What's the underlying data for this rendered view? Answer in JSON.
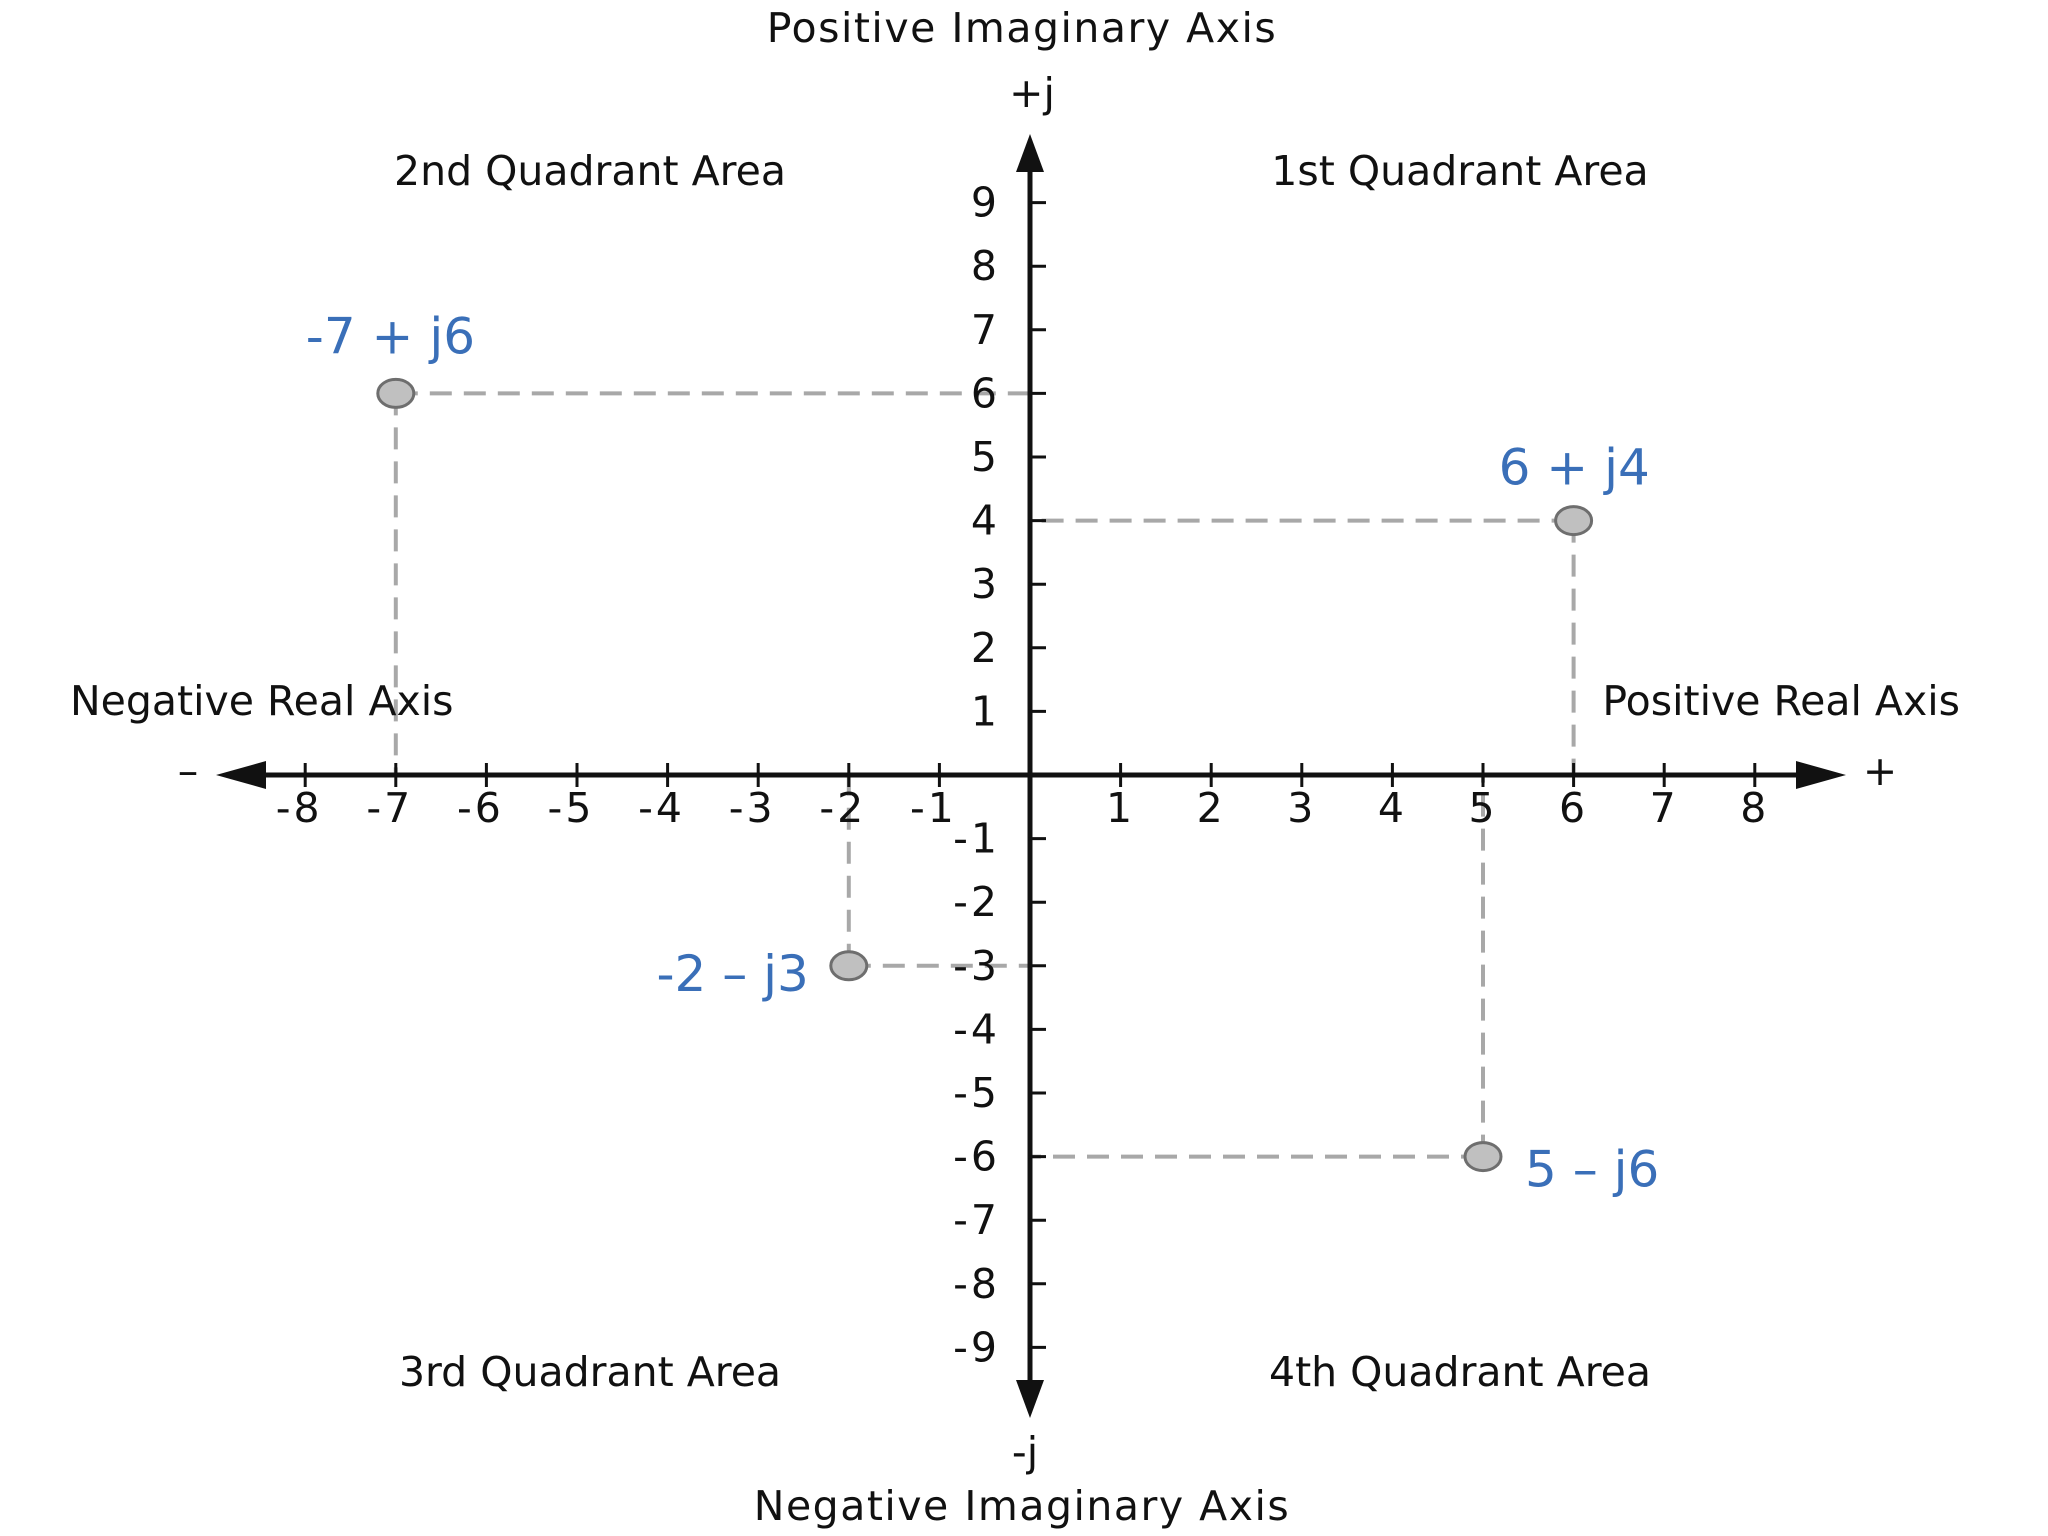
{
  "title_top": "Positive Imaginary Axis",
  "title_bottom": "Negative Imaginary Axis",
  "plus_j": "+j",
  "minus_j": "-j",
  "real_pos_label": "Positive Real Axis",
  "real_neg_label": "Negative Real Axis",
  "real_plus_sign": "+",
  "real_minus_sign": "–",
  "quadrants": {
    "q1": "1st Quadrant Area",
    "q2": "2nd Quadrant Area",
    "q3": "3rd Quadrant Area",
    "q4": "4th Quadrant Area"
  },
  "colors": {
    "axis": "#111111",
    "point_fill": "#c0c0c0",
    "point_stroke": "#6e6e6e",
    "guide": "#a8a8a8",
    "point_label": "#3a6fb8"
  },
  "chart_data": {
    "type": "scatter",
    "xlim": [
      -8,
      8
    ],
    "ylim": [
      -9,
      9
    ],
    "x_ticks": [
      -8,
      -7,
      -6,
      -5,
      -4,
      -3,
      -2,
      -1,
      1,
      2,
      3,
      4,
      5,
      6,
      7,
      8
    ],
    "y_ticks": [
      9,
      8,
      7,
      6,
      5,
      4,
      3,
      2,
      1,
      -1,
      -2,
      -3,
      -4,
      -5,
      -6,
      -7,
      -8,
      -9
    ],
    "points": [
      {
        "x": -7,
        "y": 6,
        "label": "-7 + j6"
      },
      {
        "x": 6,
        "y": 4,
        "label": "6 + j4"
      },
      {
        "x": -2,
        "y": -3,
        "label": "-2 – j3"
      },
      {
        "x": 5,
        "y": -6,
        "label": "5 – j6"
      }
    ]
  }
}
